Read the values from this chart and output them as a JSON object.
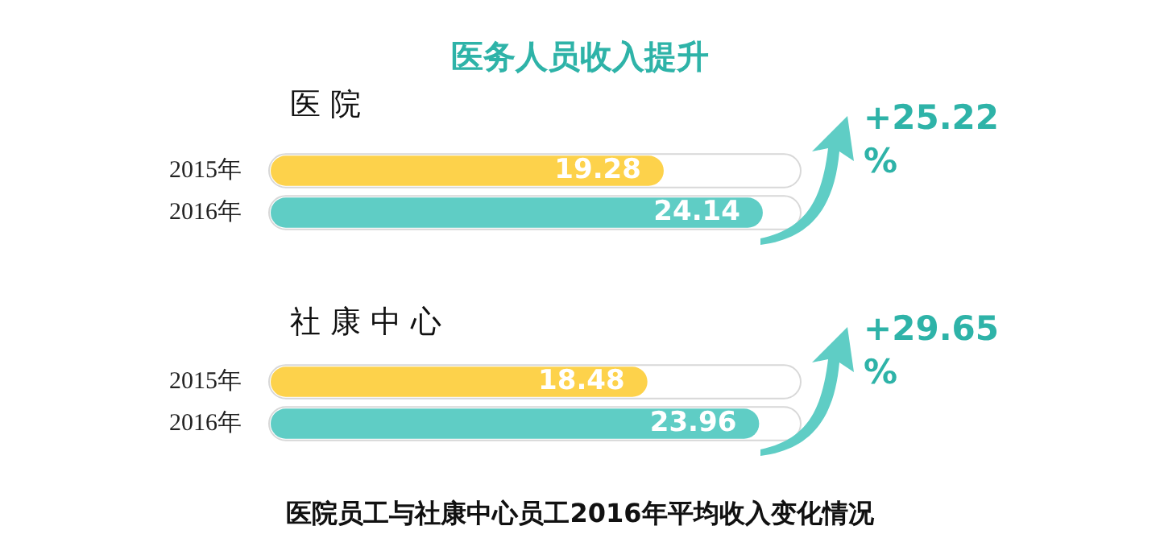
{
  "chart_data": [
    {
      "type": "bar",
      "orientation": "horizontal",
      "title": "医务人员收入提升",
      "subtitle": "医 院",
      "categories": [
        "2015年",
        "2016年"
      ],
      "values": [
        19.28,
        24.14
      ],
      "colors": [
        "#fdd24b",
        "#5fcdc5"
      ],
      "xlim": [
        0,
        26
      ],
      "data_labels": true,
      "tick_labels": "y",
      "grid": false,
      "legend": false,
      "annotations": [
        "+25.22 %"
      ]
    },
    {
      "type": "bar",
      "orientation": "horizontal",
      "title": "社 康 中 心",
      "categories": [
        "2015年",
        "2016年"
      ],
      "values": [
        18.48,
        23.96
      ],
      "colors": [
        "#fdd24b",
        "#5fcdc5"
      ],
      "xlim": [
        0,
        26
      ],
      "data_labels": true,
      "tick_labels": "y",
      "grid": false,
      "legend": false,
      "annotations": [
        "+29.65 %",
        "医院员工与社康中心员工2016年平均收入变化情况"
      ]
    }
  ]
}
